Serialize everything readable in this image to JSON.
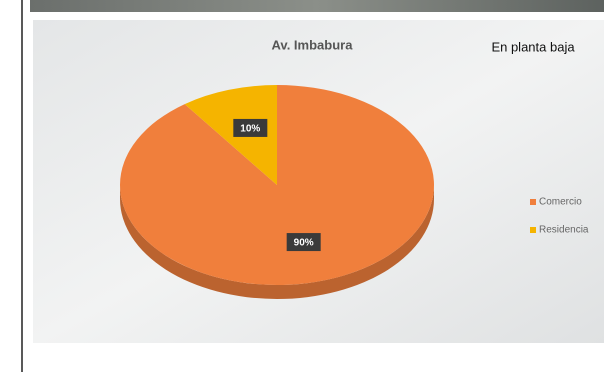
{
  "chart_data": {
    "type": "pie",
    "title": "Av. Imbabura",
    "annotation": "En planta baja",
    "categories": [
      "Comercio",
      "Residencia"
    ],
    "values": [
      90,
      10
    ],
    "value_labels": [
      "90%",
      "10%"
    ],
    "colors": [
      "#f07f3c",
      "#f5b400"
    ],
    "legend": "right"
  }
}
